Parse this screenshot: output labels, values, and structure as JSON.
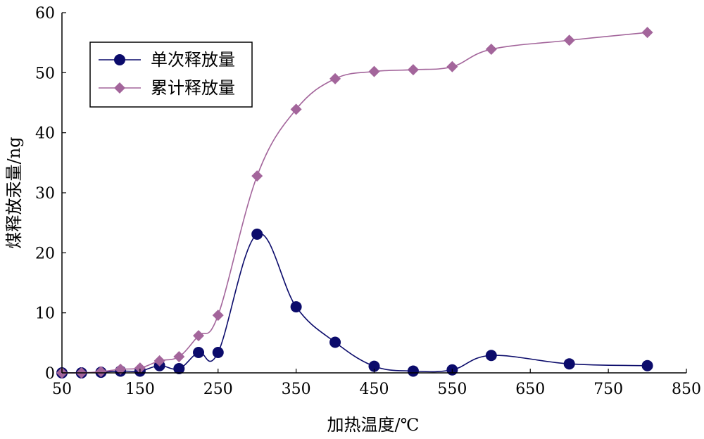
{
  "chart_data": {
    "type": "line",
    "xlabel": "加热温度/℃",
    "ylabel": "煤释放汞量/ng",
    "xlim": [
      50,
      850
    ],
    "ylim": [
      0,
      60
    ],
    "xticks": [
      50,
      150,
      250,
      350,
      450,
      550,
      650,
      750,
      850
    ],
    "yticks": [
      0,
      10,
      20,
      30,
      40,
      50,
      60
    ],
    "grid": false,
    "legend_position": "top-left",
    "series": [
      {
        "name": "单次释放量",
        "color": "#0b0b6b",
        "marker": "circle",
        "x": [
          50,
          75,
          100,
          125,
          150,
          175,
          200,
          225,
          250,
          300,
          350,
          400,
          450,
          500,
          550,
          600,
          700,
          800
        ],
        "y": [
          0.0,
          0.0,
          0.1,
          0.3,
          0.3,
          1.2,
          0.7,
          3.4,
          3.4,
          23.1,
          11.0,
          5.1,
          1.1,
          0.3,
          0.5,
          2.9,
          1.5,
          1.2
        ]
      },
      {
        "name": "累计释放量",
        "color": "#a3659b",
        "marker": "diamond",
        "x": [
          50,
          75,
          100,
          125,
          150,
          175,
          200,
          225,
          250,
          300,
          350,
          400,
          450,
          500,
          550,
          600,
          700,
          800
        ],
        "y": [
          0.0,
          0.0,
          0.2,
          0.6,
          0.8,
          2.0,
          2.7,
          6.2,
          9.6,
          32.8,
          43.9,
          49.0,
          50.2,
          50.5,
          51.0,
          53.9,
          55.4,
          56.7
        ]
      }
    ]
  }
}
